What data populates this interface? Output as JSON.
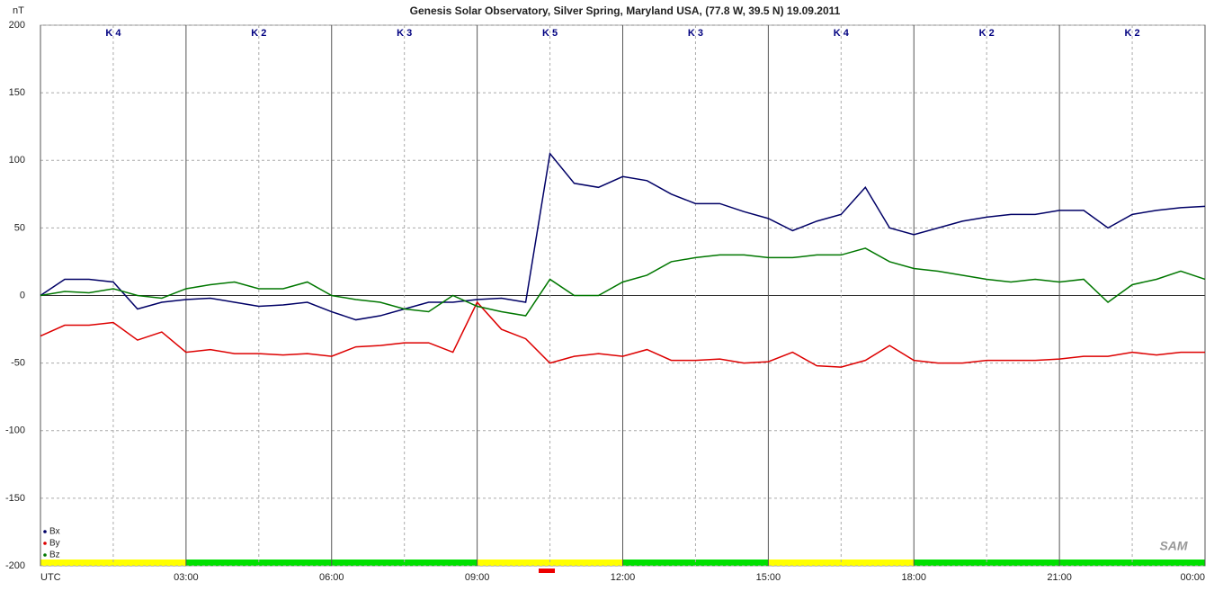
{
  "chart_data": {
    "type": "line",
    "title": "Genesis Solar Observatory, Silver Spring, Maryland USA, (77.8 W, 39.5 N)  19.09.2011",
    "ylabel": "nT",
    "ylim": [
      -200,
      200
    ],
    "yticks": [
      -200,
      -150,
      -100,
      -50,
      0,
      50,
      100,
      150,
      200
    ],
    "xlim": [
      0,
      24
    ],
    "xticks": [
      {
        "value": 0,
        "label": "UTC"
      },
      {
        "value": 3,
        "label": "03:00"
      },
      {
        "value": 6,
        "label": "06:00"
      },
      {
        "value": 9,
        "label": "09:00"
      },
      {
        "value": 12,
        "label": "12:00"
      },
      {
        "value": 15,
        "label": "15:00"
      },
      {
        "value": 18,
        "label": "18:00"
      },
      {
        "value": 21,
        "label": "21:00"
      },
      {
        "value": 24,
        "label": "00:00"
      }
    ],
    "xminorticks": [
      1.5,
      4.5,
      7.5,
      10.5,
      13.5,
      16.5,
      19.5,
      22.5
    ],
    "grid": true,
    "k_labels": [
      "K 4",
      "K 2",
      "K 3",
      "K 5",
      "K 3",
      "K 4",
      "K 2",
      "K 2"
    ],
    "status_bar": [
      {
        "from": 0,
        "to": 3,
        "color": "#ffff00"
      },
      {
        "from": 3,
        "to": 9,
        "color": "#00e000"
      },
      {
        "from": 9,
        "to": 12,
        "color": "#ffff00"
      },
      {
        "from": 12,
        "to": 15,
        "color": "#00e000"
      },
      {
        "from": 15,
        "to": 18,
        "color": "#ffff00"
      },
      {
        "from": 18,
        "to": 24,
        "color": "#00e000"
      }
    ],
    "logo": "SAM",
    "legend": "bottom-left",
    "x": [
      0,
      0.5,
      1,
      1.5,
      2,
      2.5,
      3,
      3.5,
      4,
      4.5,
      5,
      5.5,
      6,
      6.5,
      7,
      7.5,
      8,
      8.5,
      9,
      9.5,
      10,
      10.5,
      11,
      11.5,
      12,
      12.5,
      13,
      13.5,
      14,
      14.5,
      15,
      15.5,
      16,
      16.5,
      17,
      17.5,
      18,
      18.5,
      19,
      19.5,
      20,
      20.5,
      21,
      21.5,
      22,
      22.5,
      23,
      23.5,
      24
    ],
    "series": [
      {
        "name": "Bx",
        "color": "#000066",
        "values": [
          0,
          12,
          12,
          10,
          -10,
          -5,
          -3,
          -2,
          -5,
          -8,
          -7,
          -5,
          -12,
          -18,
          -15,
          -10,
          -5,
          -5,
          -3,
          -2,
          -5,
          105,
          83,
          80,
          88,
          85,
          75,
          68,
          68,
          62,
          57,
          48,
          55,
          60,
          80,
          50,
          45,
          50,
          55,
          58,
          60,
          60,
          63,
          63,
          50,
          60,
          63,
          65,
          66
        ]
      },
      {
        "name": "By",
        "color": "#dd0000",
        "values": [
          -30,
          -22,
          -22,
          -20,
          -33,
          -27,
          -42,
          -40,
          -43,
          -43,
          -44,
          -43,
          -45,
          -38,
          -37,
          -35,
          -35,
          -42,
          -5,
          -25,
          -32,
          -50,
          -45,
          -43,
          -45,
          -40,
          -48,
          -48,
          -47,
          -50,
          -49,
          -42,
          -52,
          -53,
          -48,
          -37,
          -48,
          -50,
          -50,
          -48,
          -48,
          -48,
          -47,
          -45,
          -45,
          -42,
          -44,
          -42,
          -42
        ]
      },
      {
        "name": "Bz",
        "color": "#007700",
        "values": [
          0,
          3,
          2,
          5,
          0,
          -2,
          5,
          8,
          10,
          5,
          5,
          10,
          0,
          -3,
          -5,
          -10,
          -12,
          0,
          -8,
          -12,
          -15,
          12,
          0,
          0,
          10,
          15,
          25,
          28,
          30,
          30,
          28,
          28,
          30,
          30,
          35,
          25,
          20,
          18,
          15,
          12,
          10,
          12,
          10,
          12,
          -5,
          8,
          12,
          18,
          12
        ]
      }
    ]
  }
}
